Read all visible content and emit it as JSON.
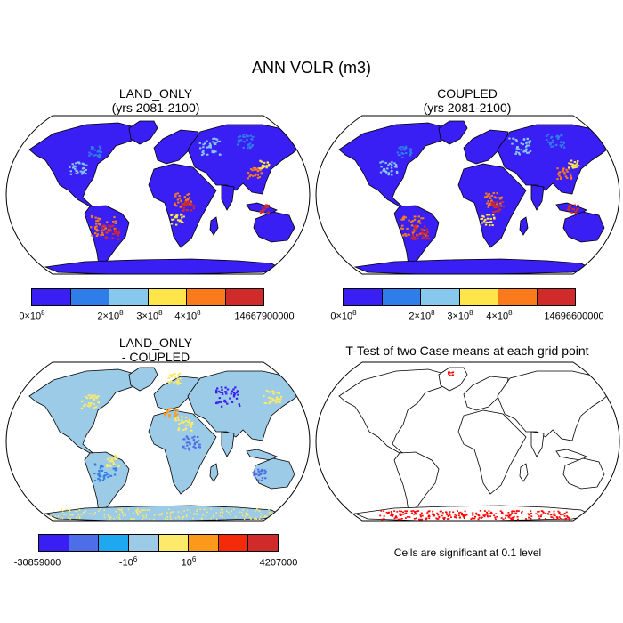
{
  "title": "ANN VOLR (m3)",
  "panels": [
    {
      "title_line1": "LAND_ONLY",
      "title_line2": "(yrs 2081-2100)",
      "colorbar": {
        "colors": [
          "#3a1ff5",
          "#2f7de8",
          "#88c8ec",
          "#fde54a",
          "#fb7a1c",
          "#d12a2a"
        ],
        "labels": [
          {
            "base": "0×10",
            "exp": "8"
          },
          {
            "base": "2×10",
            "exp": "8"
          },
          {
            "base": "3×10",
            "exp": "8"
          },
          {
            "base": "4×10",
            "exp": "8"
          },
          {
            "base": "14667900000",
            "exp": ""
          }
        ]
      }
    },
    {
      "title_line1": "COUPLED",
      "title_line2": "(yrs 2081-2100)",
      "colorbar": {
        "colors": [
          "#3a1ff5",
          "#2f7de8",
          "#88c8ec",
          "#fde54a",
          "#fb7a1c",
          "#d12a2a"
        ],
        "labels": [
          {
            "base": "0×10",
            "exp": "8"
          },
          {
            "base": "2×10",
            "exp": "8"
          },
          {
            "base": "3×10",
            "exp": "8"
          },
          {
            "base": "4×10",
            "exp": "8"
          },
          {
            "base": "14696600000",
            "exp": ""
          }
        ]
      }
    },
    {
      "title_line1": "LAND_ONLY",
      "title_line2": "- COUPLED",
      "colorbar": {
        "colors": [
          "#3a1ff5",
          "#4d6ee8",
          "#1ea8f0",
          "#9ccbe8",
          "#fde96a",
          "#fb9a1a",
          "#f52a0a",
          "#d12a2a"
        ],
        "labels": [
          {
            "base": "-30859000",
            "exp": ""
          },
          {
            "base": "-10",
            "exp": "6"
          },
          {
            "base": "10",
            "exp": "6"
          },
          {
            "base": "4207000",
            "exp": ""
          }
        ]
      }
    },
    {
      "title_line1": "T-Test of two Case means at each grid point",
      "note": "Cells are significant at 0.1 level"
    }
  ],
  "colors": {
    "ocean": "#ffffff",
    "land_main": "#3a1ff5",
    "diff_land": "#9ccbe8",
    "significant": "#ff0000"
  }
}
